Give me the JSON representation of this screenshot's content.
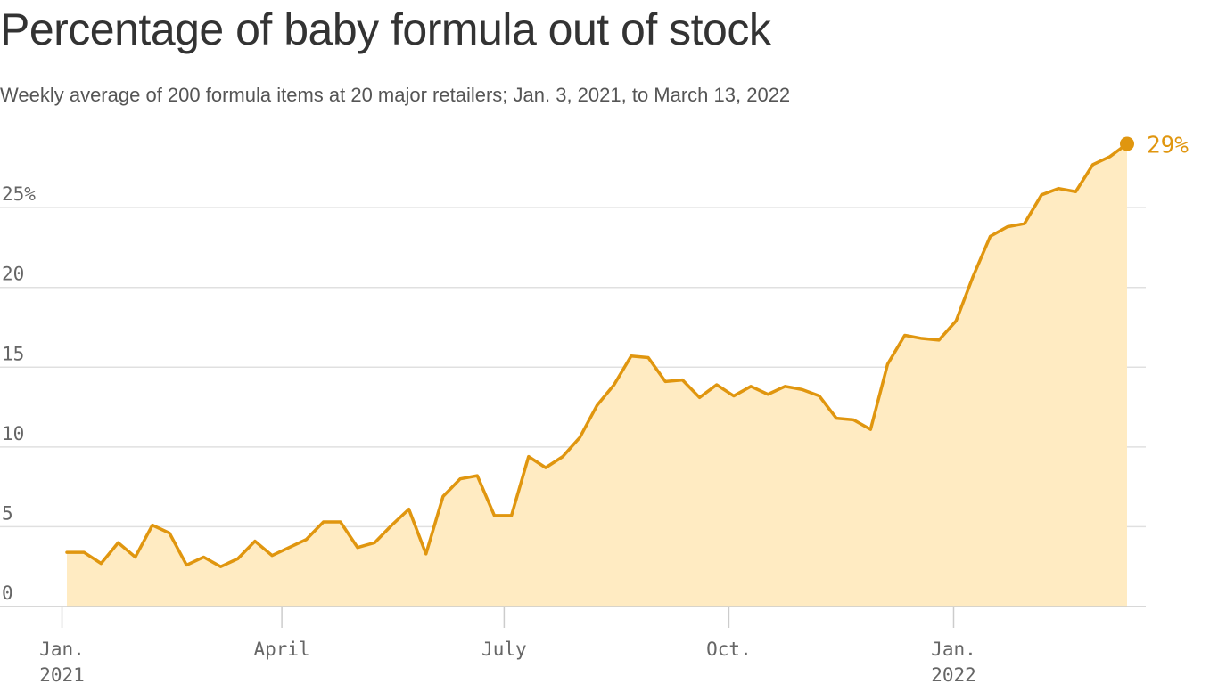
{
  "chart_data": {
    "type": "area",
    "title": "Percentage of baby formula out of stock",
    "subtitle": "Weekly average of 200 formula items at 20 major retailers; Jan. 3, 2021, to March 13, 2022",
    "x_start": "2021-01-03",
    "x_step_days": 7,
    "y": [
      3.4,
      3.4,
      2.7,
      4.0,
      3.1,
      5.1,
      4.6,
      2.6,
      3.1,
      2.5,
      3.0,
      4.1,
      3.2,
      3.7,
      4.2,
      5.3,
      5.3,
      3.7,
      4.0,
      5.1,
      6.1,
      3.3,
      6.9,
      8.0,
      8.2,
      5.7,
      5.7,
      9.4,
      8.7,
      9.4,
      10.6,
      12.6,
      13.9,
      15.7,
      15.6,
      14.1,
      14.2,
      13.1,
      13.9,
      13.2,
      13.8,
      13.3,
      13.8,
      13.6,
      13.2,
      11.8,
      11.7,
      11.1,
      15.2,
      17.0,
      16.8,
      16.7,
      17.9,
      20.7,
      23.2,
      23.8,
      24.0,
      25.8,
      26.2,
      26.0,
      27.7,
      28.2,
      29.0
    ],
    "x_ticks": [
      {
        "date": "2021-01-01",
        "line1": "Jan.",
        "line2": "2021"
      },
      {
        "date": "2021-04-01",
        "line1": "April",
        "line2": ""
      },
      {
        "date": "2021-07-01",
        "line1": "July",
        "line2": ""
      },
      {
        "date": "2021-10-01",
        "line1": "Oct.",
        "line2": ""
      },
      {
        "date": "2022-01-01",
        "line1": "Jan.",
        "line2": "2022"
      }
    ],
    "y_ticks": [
      {
        "value": 0,
        "label": "0"
      },
      {
        "value": 5,
        "label": "5"
      },
      {
        "value": 10,
        "label": "10"
      },
      {
        "value": 15,
        "label": "15"
      },
      {
        "value": 20,
        "label": "20"
      },
      {
        "value": 25,
        "label": "25%"
      }
    ],
    "ylim": [
      0,
      29
    ],
    "end_label": "29%",
    "grid": true,
    "colors": {
      "line": "#e0960f",
      "fill": "#ffebc2",
      "grid": "#e0e0e0",
      "axis": "#cccccc"
    }
  }
}
